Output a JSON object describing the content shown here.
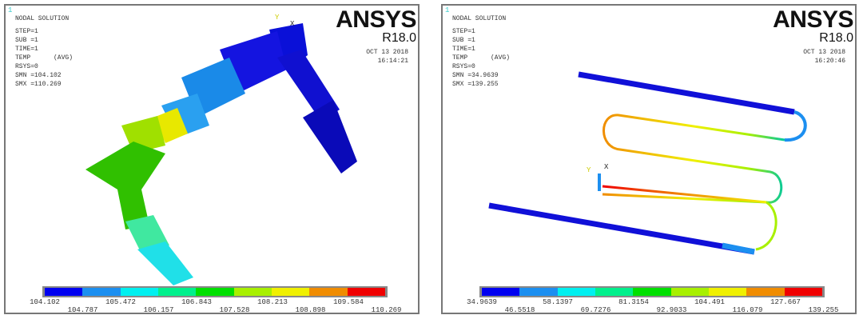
{
  "panels": [
    {
      "window_number": "1",
      "title": "NODAL SOLUTION",
      "step": "STEP=1",
      "sub": "SUB =1",
      "time": "TIME=1",
      "temp": "TEMP      (AVG)",
      "rsys": "RSYS=0",
      "smn": "SMN =104.102",
      "smx": "SMX =110.269",
      "logo": "ANSYS",
      "version": "R18.0",
      "date": "OCT 13 2018",
      "clock": "16:14:21",
      "axis_y": "Y",
      "axis_x": "X",
      "legend": [
        "104.102",
        "104.787",
        "105.472",
        "106.157",
        "106.843",
        "107.528",
        "108.213",
        "108.898",
        "109.584",
        "110.269"
      ]
    },
    {
      "window_number": "1",
      "title": "NODAL SOLUTION",
      "step": "STEP=1",
      "sub": "SUB =1",
      "time": "TIME=1",
      "temp": "TEMP      (AVG)",
      "rsys": "RSYS=0",
      "smn": "SMN =34.9639",
      "smx": "SMX =139.255",
      "logo": "ANSYS",
      "version": "R18.0",
      "date": "OCT 13 2018",
      "clock": "16:20:46",
      "axis_y": "Y",
      "axis_x": "X",
      "legend": [
        "34.9639",
        "46.5518",
        "58.1397",
        "69.7276",
        "81.3154",
        "92.9033",
        "104.491",
        "116.079",
        "127.667",
        "139.255"
      ]
    }
  ],
  "legend_colors": [
    "#0000f0",
    "#1c8ff0",
    "#00f0f0",
    "#00f08c",
    "#00e000",
    "#a8f000",
    "#f0f000",
    "#f08c00",
    "#f00000"
  ]
}
